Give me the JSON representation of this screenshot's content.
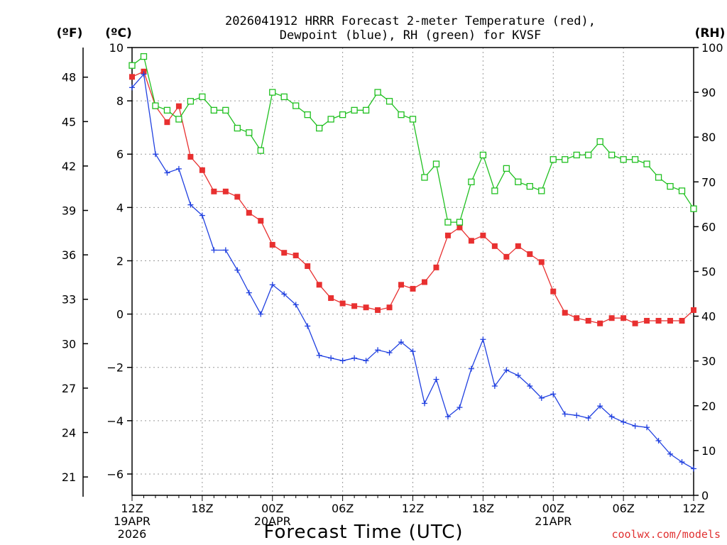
{
  "chart_data": {
    "type": "line",
    "title_line1": "2026041912 HRRR Forecast 2-meter Temperature (red),",
    "title_line2": "Dewpoint (blue), RH (green) for KVSF",
    "xlabel": "Forecast Time (UTC)",
    "credit": "coolwx.com/models",
    "units": {
      "left_f": "(ºF)",
      "left_c": "(ºC)",
      "right": "(RH)"
    },
    "axis_c": {
      "range": [
        -6.8,
        10
      ],
      "ticks": [
        10,
        8,
        6,
        4,
        2,
        0,
        -2,
        -4,
        -6
      ]
    },
    "axis_f": {
      "ticks": [
        48,
        45,
        42,
        39,
        36,
        33,
        30,
        27,
        24,
        21
      ]
    },
    "axis_rh": {
      "range": [
        0,
        100
      ],
      "ticks": [
        100,
        90,
        80,
        70,
        60,
        50,
        40,
        30,
        20,
        10,
        0
      ]
    },
    "x_hours_range": [
      0,
      48
    ],
    "x_ticks": [
      {
        "h": 0,
        "label": "12Z",
        "sub1": "19APR",
        "sub2": "2026"
      },
      {
        "h": 6,
        "label": "18Z"
      },
      {
        "h": 12,
        "label": "00Z",
        "sub1": "20APR"
      },
      {
        "h": 18,
        "label": "06Z"
      },
      {
        "h": 24,
        "label": "12Z"
      },
      {
        "h": 30,
        "label": "18Z"
      },
      {
        "h": 36,
        "label": "00Z",
        "sub1": "21APR"
      },
      {
        "h": 42,
        "label": "06Z"
      },
      {
        "h": 48,
        "label": "12Z"
      }
    ],
    "grid": true,
    "series": [
      {
        "name": "Temperature",
        "axis": "C",
        "color": "#e83030",
        "marker": "filled-square",
        "values": [
          8.9,
          9.1,
          7.8,
          7.2,
          7.8,
          5.9,
          5.4,
          4.6,
          4.6,
          4.4,
          3.8,
          3.5,
          2.6,
          2.3,
          2.2,
          1.8,
          1.1,
          0.6,
          0.4,
          0.3,
          0.25,
          0.15,
          0.25,
          1.1,
          0.95,
          1.2,
          1.75,
          2.95,
          3.25,
          2.75,
          2.95,
          2.55,
          2.15,
          2.55,
          2.25,
          1.95,
          0.85,
          0.05,
          -0.15,
          -0.25,
          -0.35,
          -0.15,
          -0.15,
          -0.35,
          -0.25,
          -0.25,
          -0.25,
          -0.25,
          0.15
        ]
      },
      {
        "name": "Dewpoint",
        "axis": "C",
        "color": "#2040e0",
        "marker": "plus",
        "values": [
          8.5,
          9.0,
          6.0,
          5.3,
          5.45,
          4.1,
          3.7,
          2.4,
          2.4,
          1.65,
          0.8,
          0.0,
          1.1,
          0.75,
          0.35,
          -0.45,
          -1.55,
          -1.65,
          -1.75,
          -1.65,
          -1.75,
          -1.35,
          -1.45,
          -1.05,
          -1.4,
          -3.35,
          -2.45,
          -3.85,
          -3.5,
          -2.05,
          -0.95,
          -2.7,
          -2.1,
          -2.3,
          -2.7,
          -3.15,
          -3.0,
          -3.75,
          -3.8,
          -3.9,
          -3.45,
          -3.85,
          -4.05,
          -4.2,
          -4.25,
          -4.75,
          -5.25,
          -5.55,
          -5.8
        ]
      },
      {
        "name": "RH",
        "axis": "RH",
        "color": "#20c020",
        "marker": "open-square",
        "values": [
          96,
          98,
          87,
          86,
          84,
          88,
          89,
          86,
          86,
          82,
          81,
          77,
          90,
          89,
          87,
          85,
          82,
          84,
          85,
          86,
          86,
          90,
          88,
          85,
          84,
          71,
          74,
          61,
          61,
          70,
          76,
          68,
          73,
          70,
          69,
          68,
          75,
          75,
          76,
          76,
          79,
          76,
          75,
          75,
          74,
          71,
          69,
          68,
          64
        ]
      }
    ]
  }
}
